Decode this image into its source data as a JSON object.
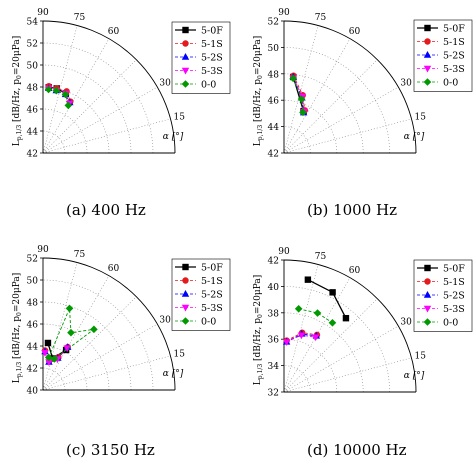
{
  "chart_data": [
    {
      "type": "scatter",
      "polar": true,
      "panel": "(a)",
      "caption": "(a)  400 Hz",
      "ylabel": "L",
      "ylabel_sub": "p,1/3",
      "ylabel_rest": " [dB/Hz, p",
      "ylabel_sub2": "0",
      "ylabel_end": "=20μPa]",
      "angle_label": "α [°]",
      "r_ticks": [
        42,
        44,
        46,
        48,
        50,
        52,
        54
      ],
      "r_range": [
        42,
        54
      ],
      "angle_ticks": [
        90,
        75,
        60,
        30,
        15
      ],
      "angle_range": [
        0,
        90
      ],
      "legend_position": "right",
      "series": [
        {
          "name": "5-0F",
          "color": "#000000",
          "marker": "square",
          "line": "solid",
          "points": [
            [
              85,
              48.0
            ],
            [
              78,
              48.0
            ],
            [
              69,
              47.8
            ]
          ]
        },
        {
          "name": "5-1S",
          "color": "#e41a1c",
          "marker": "circle",
          "line": "dashed",
          "points": [
            [
              85,
              48.1
            ],
            [
              78,
              48.0
            ],
            [
              69,
              48.0
            ],
            [
              62,
              47.3
            ]
          ]
        },
        {
          "name": "5-2S",
          "color": "#0000ff",
          "marker": "triangle-up",
          "line": "dashed",
          "points": [
            [
              85,
              47.9
            ],
            [
              78,
              47.8
            ],
            [
              69,
              47.7
            ],
            [
              62,
              47.2
            ]
          ]
        },
        {
          "name": "5-3S",
          "color": "#ff00ff",
          "marker": "triangle-down",
          "line": "dashed",
          "points": [
            [
              85,
              47.9
            ],
            [
              78,
              47.8
            ],
            [
              69,
              47.8
            ],
            [
              62,
              47.1
            ]
          ]
        },
        {
          "name": "0-0",
          "color": "#009900",
          "marker": "diamond",
          "line": "dashed",
          "points": [
            [
              85,
              47.8
            ],
            [
              78,
              47.8
            ],
            [
              69,
              47.7
            ],
            [
              62,
              46.9
            ]
          ]
        }
      ]
    },
    {
      "type": "scatter",
      "polar": true,
      "panel": "(b)",
      "caption": "(b)  1000 Hz",
      "ylabel": "L",
      "ylabel_sub": "p,1/3",
      "ylabel_rest": " [dB/Hz, p",
      "ylabel_sub2": "0",
      "ylabel_end": "=20μPa]",
      "angle_label": "α [°]",
      "r_ticks": [
        42,
        44,
        46,
        48,
        50,
        52
      ],
      "r_range": [
        42,
        52
      ],
      "angle_ticks": [
        90,
        75,
        60,
        30,
        15
      ],
      "angle_range": [
        0,
        90
      ],
      "legend_position": "right",
      "series": [
        {
          "name": "5-0F",
          "color": "#000000",
          "marker": "square",
          "line": "solid",
          "points": [
            [
              83,
              47.8
            ],
            [
              65,
              45.5
            ]
          ]
        },
        {
          "name": "5-1S",
          "color": "#e41a1c",
          "marker": "circle",
          "line": "dashed",
          "points": [
            [
              83,
              47.9
            ],
            [
              72,
              46.6
            ],
            [
              64,
              45.6
            ]
          ]
        },
        {
          "name": "5-2S",
          "color": "#0000ff",
          "marker": "triangle-up",
          "line": "dashed",
          "points": [
            [
              83,
              47.8
            ],
            [
              72,
              46.4
            ],
            [
              64,
              45.4
            ]
          ]
        },
        {
          "name": "5-3S",
          "color": "#ff00ff",
          "marker": "triangle-down",
          "line": "dashed",
          "points": [
            [
              83,
              47.7
            ],
            [
              72,
              46.5
            ],
            [
              64,
              45.5
            ]
          ]
        },
        {
          "name": "0-0",
          "color": "#009900",
          "marker": "diamond",
          "line": "dashed",
          "points": [
            [
              83,
              47.7
            ],
            [
              72,
              46.3
            ],
            [
              65,
              45.4
            ]
          ]
        }
      ]
    },
    {
      "type": "scatter",
      "polar": true,
      "panel": "(c)",
      "caption": "(c)  3150 Hz",
      "ylabel": "L",
      "ylabel_sub": "p,1/3",
      "ylabel_rest": " [dB/Hz, p",
      "ylabel_sub2": "0",
      "ylabel_end": "=20μPa]",
      "angle_label": "α [°]",
      "r_ticks": [
        40,
        42,
        44,
        46,
        48,
        50,
        52
      ],
      "r_range": [
        40,
        52
      ],
      "angle_ticks": [
        90,
        75,
        60,
        30,
        15
      ],
      "angle_range": [
        0,
        90
      ],
      "legend_position": "right",
      "series": [
        {
          "name": "5-0F",
          "color": "#000000",
          "marker": "square",
          "line": "solid",
          "points": [
            [
              84,
              44.3
            ],
            [
              73,
              43.0
            ],
            [
              60,
              44.2
            ]
          ]
        },
        {
          "name": "5-1S",
          "color": "#e41a1c",
          "marker": "circle",
          "line": "dashed",
          "points": [
            [
              87,
              43.6
            ],
            [
              78,
              42.7
            ],
            [
              65,
              43.3
            ],
            [
              60,
              44.5
            ]
          ]
        },
        {
          "name": "5-2S",
          "color": "#0000ff",
          "marker": "triangle-up",
          "line": "dashed",
          "points": [
            [
              87,
              43.5
            ],
            [
              78,
              42.6
            ],
            [
              65,
              43.2
            ],
            [
              60,
              44.5
            ]
          ]
        },
        {
          "name": "5-3S",
          "color": "#ff00ff",
          "marker": "triangle-down",
          "line": "dashed",
          "points": [
            [
              87,
              43.4
            ],
            [
              78,
              42.6
            ],
            [
              65,
              43.1
            ],
            [
              60,
              44.4
            ]
          ]
        },
        {
          "name": "0-0",
          "color": "#009900",
          "marker": "diamond",
          "line": "dashed",
          "points": [
            [
              80,
              43.0
            ],
            [
              72,
              47.8
            ],
            [
              64,
              45.8
            ],
            [
              50,
              47.2
            ],
            [
              70,
              43.0
            ]
          ]
        }
      ]
    },
    {
      "type": "scatter",
      "polar": true,
      "panel": "(d)",
      "caption": "(d)  10000 Hz",
      "ylabel": "L",
      "ylabel_sub": "p,1/3",
      "ylabel_rest": " [dB/Hz, p",
      "ylabel_sub2": "0",
      "ylabel_end": "=20μPa]",
      "angle_label": "α [°]",
      "r_ticks": [
        32,
        34,
        36,
        38,
        40,
        42
      ],
      "r_range": [
        32,
        42
      ],
      "angle_ticks": [
        90,
        75,
        60,
        30,
        15
      ],
      "angle_range": [
        0,
        90
      ],
      "legend_position": "right",
      "series": [
        {
          "name": "5-0F",
          "color": "#000000",
          "marker": "square",
          "line": "solid",
          "points": [
            [
              78,
              40.7
            ],
            [
              64,
              40.4
            ],
            [
              50,
              39.3
            ]
          ]
        },
        {
          "name": "5-1S",
          "color": "#e41a1c",
          "marker": "circle",
          "line": "dashed",
          "points": [
            [
              87,
              35.9
            ],
            [
              73,
              36.7
            ],
            [
              60,
              37.0
            ]
          ]
        },
        {
          "name": "5-2S",
          "color": "#0000ff",
          "marker": "triangle-up",
          "line": "dashed",
          "points": [
            [
              87,
              35.8
            ],
            [
              73,
              36.6
            ],
            [
              60,
              36.9
            ]
          ]
        },
        {
          "name": "5-3S",
          "color": "#ff00ff",
          "marker": "triangle-down",
          "line": "dashed",
          "points": [
            [
              87,
              35.8
            ],
            [
              73,
              36.5
            ],
            [
              60,
              36.8
            ]
          ]
        },
        {
          "name": "0-0",
          "color": "#009900",
          "marker": "diamond",
          "line": "dashed",
          "points": [
            [
              80,
              38.4
            ],
            [
              67,
              38.5
            ],
            [
              55,
              38.4
            ]
          ]
        }
      ]
    }
  ]
}
